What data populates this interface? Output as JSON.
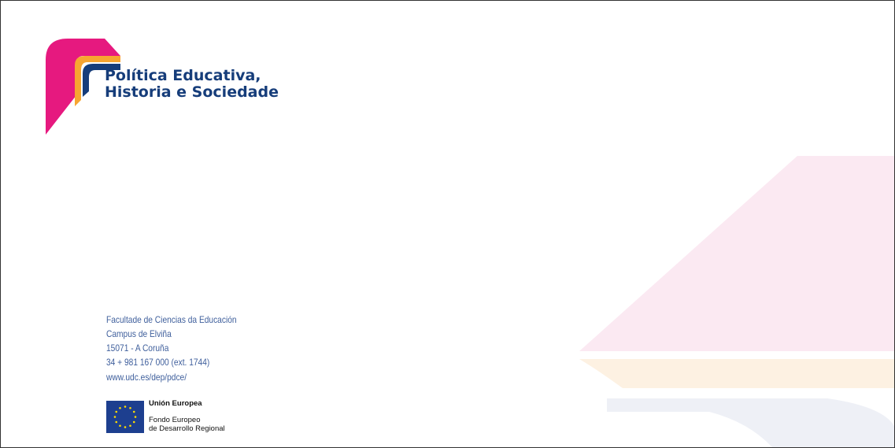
{
  "logo": {
    "line1": "Política Educativa,",
    "line2": "Historia e Sociedade"
  },
  "address": [
    "Facultade de Ciencias da Educación",
    "Campus de Elviña",
    "15071 - A Coruña",
    "34 + 981 167 000 (ext. 1744)",
    "www.udc.es/dep/pdce/"
  ],
  "eu": {
    "title": "Unión Europea",
    "line1": "Fondo Europeo",
    "line2": "de Desarrollo Regional"
  }
}
